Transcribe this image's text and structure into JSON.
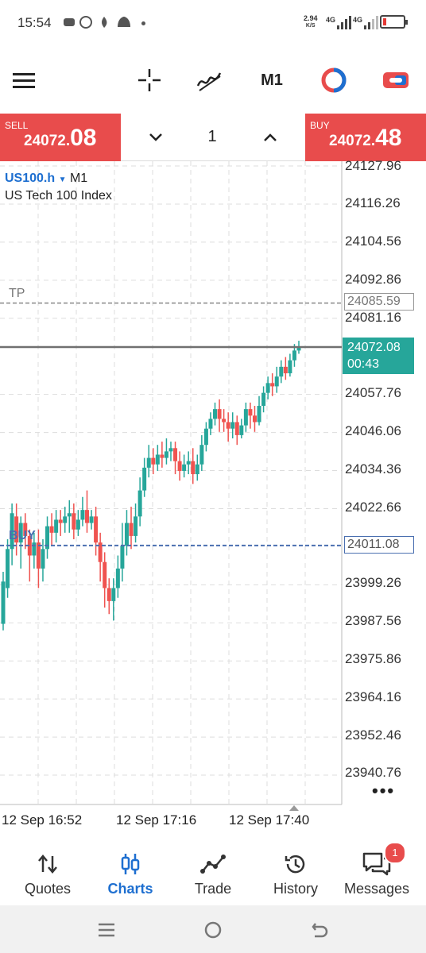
{
  "status_bar": {
    "time": "15:54",
    "speed_value": "2.94",
    "speed_unit": "K/S",
    "net1": "4G",
    "net2": "4G"
  },
  "toolbar": {
    "timeframe": "M1",
    "icons": [
      "menu-icon",
      "crosshair-icon",
      "indicators-icon",
      "timeframe-button",
      "chart-color-icon",
      "trade-toggle-icon"
    ]
  },
  "trade": {
    "sell_label": "SELL",
    "sell_price_main": "24072.",
    "sell_price_big": "08",
    "buy_label": "BUY",
    "buy_price_main": "24072.",
    "buy_price_big": "48",
    "volume": "1"
  },
  "chart": {
    "symbol": "US100.h",
    "timeframe": "M1",
    "symbol_name": "US Tech 100 Index",
    "tp_label": "TP",
    "tp_price": "24085.59",
    "buy_label": "BUY",
    "buy_price": "24011.08",
    "current_price": "24072.08",
    "countdown": "00:43",
    "price_ticks": [
      "24127.96",
      "24116.26",
      "24104.56",
      "24092.86",
      "24081.16",
      "24057.76",
      "24046.06",
      "24034.36",
      "24022.66",
      "23999.26",
      "23987.56",
      "23975.86",
      "23964.16",
      "23952.46",
      "23940.76"
    ],
    "time_ticks": [
      "12 Sep 16:52",
      "12 Sep 17:16",
      "12 Sep 17:40"
    ],
    "colors": {
      "up": "#26a69a",
      "down": "#ef5350",
      "tp_line": "#888888",
      "buy_line": "#4a6fb0",
      "current_line": "#707070"
    }
  },
  "chart_data": {
    "type": "candlestick",
    "ylim": [
      23930,
      24132
    ],
    "candles": [
      [
        23987,
        24000,
        23985,
        24003
      ],
      [
        23998,
        24010,
        23995,
        24013
      ],
      [
        24010,
        24021,
        24005,
        24024
      ],
      [
        24020,
        24012,
        24008,
        24024
      ],
      [
        24012,
        24018,
        24004,
        24020
      ],
      [
        24018,
        24014,
        24010,
        24021
      ],
      [
        24014,
        24008,
        24000,
        24016
      ],
      [
        24008,
        24012,
        24004,
        24015
      ],
      [
        24012,
        24004,
        23998,
        24016
      ],
      [
        24004,
        24010,
        24000,
        24013
      ],
      [
        24010,
        24017,
        24007,
        24020
      ],
      [
        24017,
        24015,
        24011,
        24021
      ],
      [
        24015,
        24019,
        24012,
        24022
      ],
      [
        24019,
        24018,
        24014,
        24022
      ],
      [
        24018,
        24020,
        24015,
        24023
      ],
      [
        24020,
        24021,
        24015,
        24025
      ],
      [
        24021,
        24016,
        24013,
        24024
      ],
      [
        24016,
        24019,
        24014,
        24022
      ],
      [
        24019,
        24022,
        24017,
        24026
      ],
      [
        24022,
        24018,
        24015,
        24028
      ],
      [
        24018,
        24020,
        24016,
        24022
      ],
      [
        24020,
        24012,
        24008,
        24023
      ],
      [
        24012,
        24006,
        24000,
        24015
      ],
      [
        24006,
        23998,
        23992,
        24009
      ],
      [
        23998,
        23994,
        23990,
        24001
      ],
      [
        23994,
        23998,
        23988,
        24001
      ],
      [
        23998,
        24004,
        23995,
        24008
      ],
      [
        24004,
        24011,
        24000,
        24018
      ],
      [
        24011,
        24018,
        24008,
        24022
      ],
      [
        24018,
        24014,
        24010,
        24023
      ],
      [
        24014,
        24020,
        24012,
        24024
      ],
      [
        24020,
        24028,
        24017,
        24032
      ],
      [
        24028,
        24035,
        24026,
        24038
      ],
      [
        24035,
        24038,
        24032,
        24042
      ],
      [
        24038,
        24036,
        24033,
        24041
      ],
      [
        24036,
        24039,
        24034,
        24042
      ],
      [
        24039,
        24038,
        24035,
        24043
      ],
      [
        24038,
        24040,
        24036,
        24044
      ],
      [
        24040,
        24041,
        24037,
        24043
      ],
      [
        24041,
        24037,
        24033,
        24043
      ],
      [
        24037,
        24034,
        24031,
        24040
      ],
      [
        24034,
        24036,
        24032,
        24039
      ],
      [
        24036,
        24037,
        24033,
        24040
      ],
      [
        24037,
        24033,
        24030,
        24041
      ],
      [
        24033,
        24036,
        24031,
        24039
      ],
      [
        24036,
        24042,
        24034,
        24045
      ],
      [
        24042,
        24047,
        24040,
        24049
      ],
      [
        24047,
        24050,
        24045,
        24052
      ],
      [
        24050,
        24053,
        24048,
        24055
      ],
      [
        24053,
        24050,
        24046,
        24056
      ],
      [
        24050,
        24049,
        24046,
        24053
      ],
      [
        24049,
        24047,
        24043,
        24052
      ],
      [
        24047,
        24049,
        24044,
        24052
      ],
      [
        24049,
        24045,
        24042,
        24051
      ],
      [
        24045,
        24048,
        24044,
        24050
      ],
      [
        24048,
        24053,
        24046,
        24055
      ],
      [
        24053,
        24051,
        24047,
        24055
      ],
      [
        24051,
        24049,
        24046,
        24054
      ],
      [
        24049,
        24054,
        24048,
        24057
      ],
      [
        24054,
        24058,
        24052,
        24060
      ],
      [
        24058,
        24061,
        24056,
        24063
      ],
      [
        24061,
        24060,
        24057,
        24064
      ],
      [
        24060,
        24063,
        24058,
        24066
      ],
      [
        24063,
        24066,
        24061,
        24068
      ],
      [
        24066,
        24064,
        24062,
        24069
      ],
      [
        24064,
        24068,
        24063,
        24070
      ],
      [
        24068,
        24071,
        24066,
        24073
      ],
      [
        24071,
        24072.08,
        24070,
        24074
      ]
    ],
    "levels": {
      "tp": 24085.59,
      "buy": 24011.08,
      "current": 24072.08
    }
  },
  "nav": {
    "items": [
      {
        "label": "Quotes"
      },
      {
        "label": "Charts"
      },
      {
        "label": "Trade"
      },
      {
        "label": "History"
      },
      {
        "label": "Messages"
      }
    ],
    "messages_badge": "1"
  }
}
